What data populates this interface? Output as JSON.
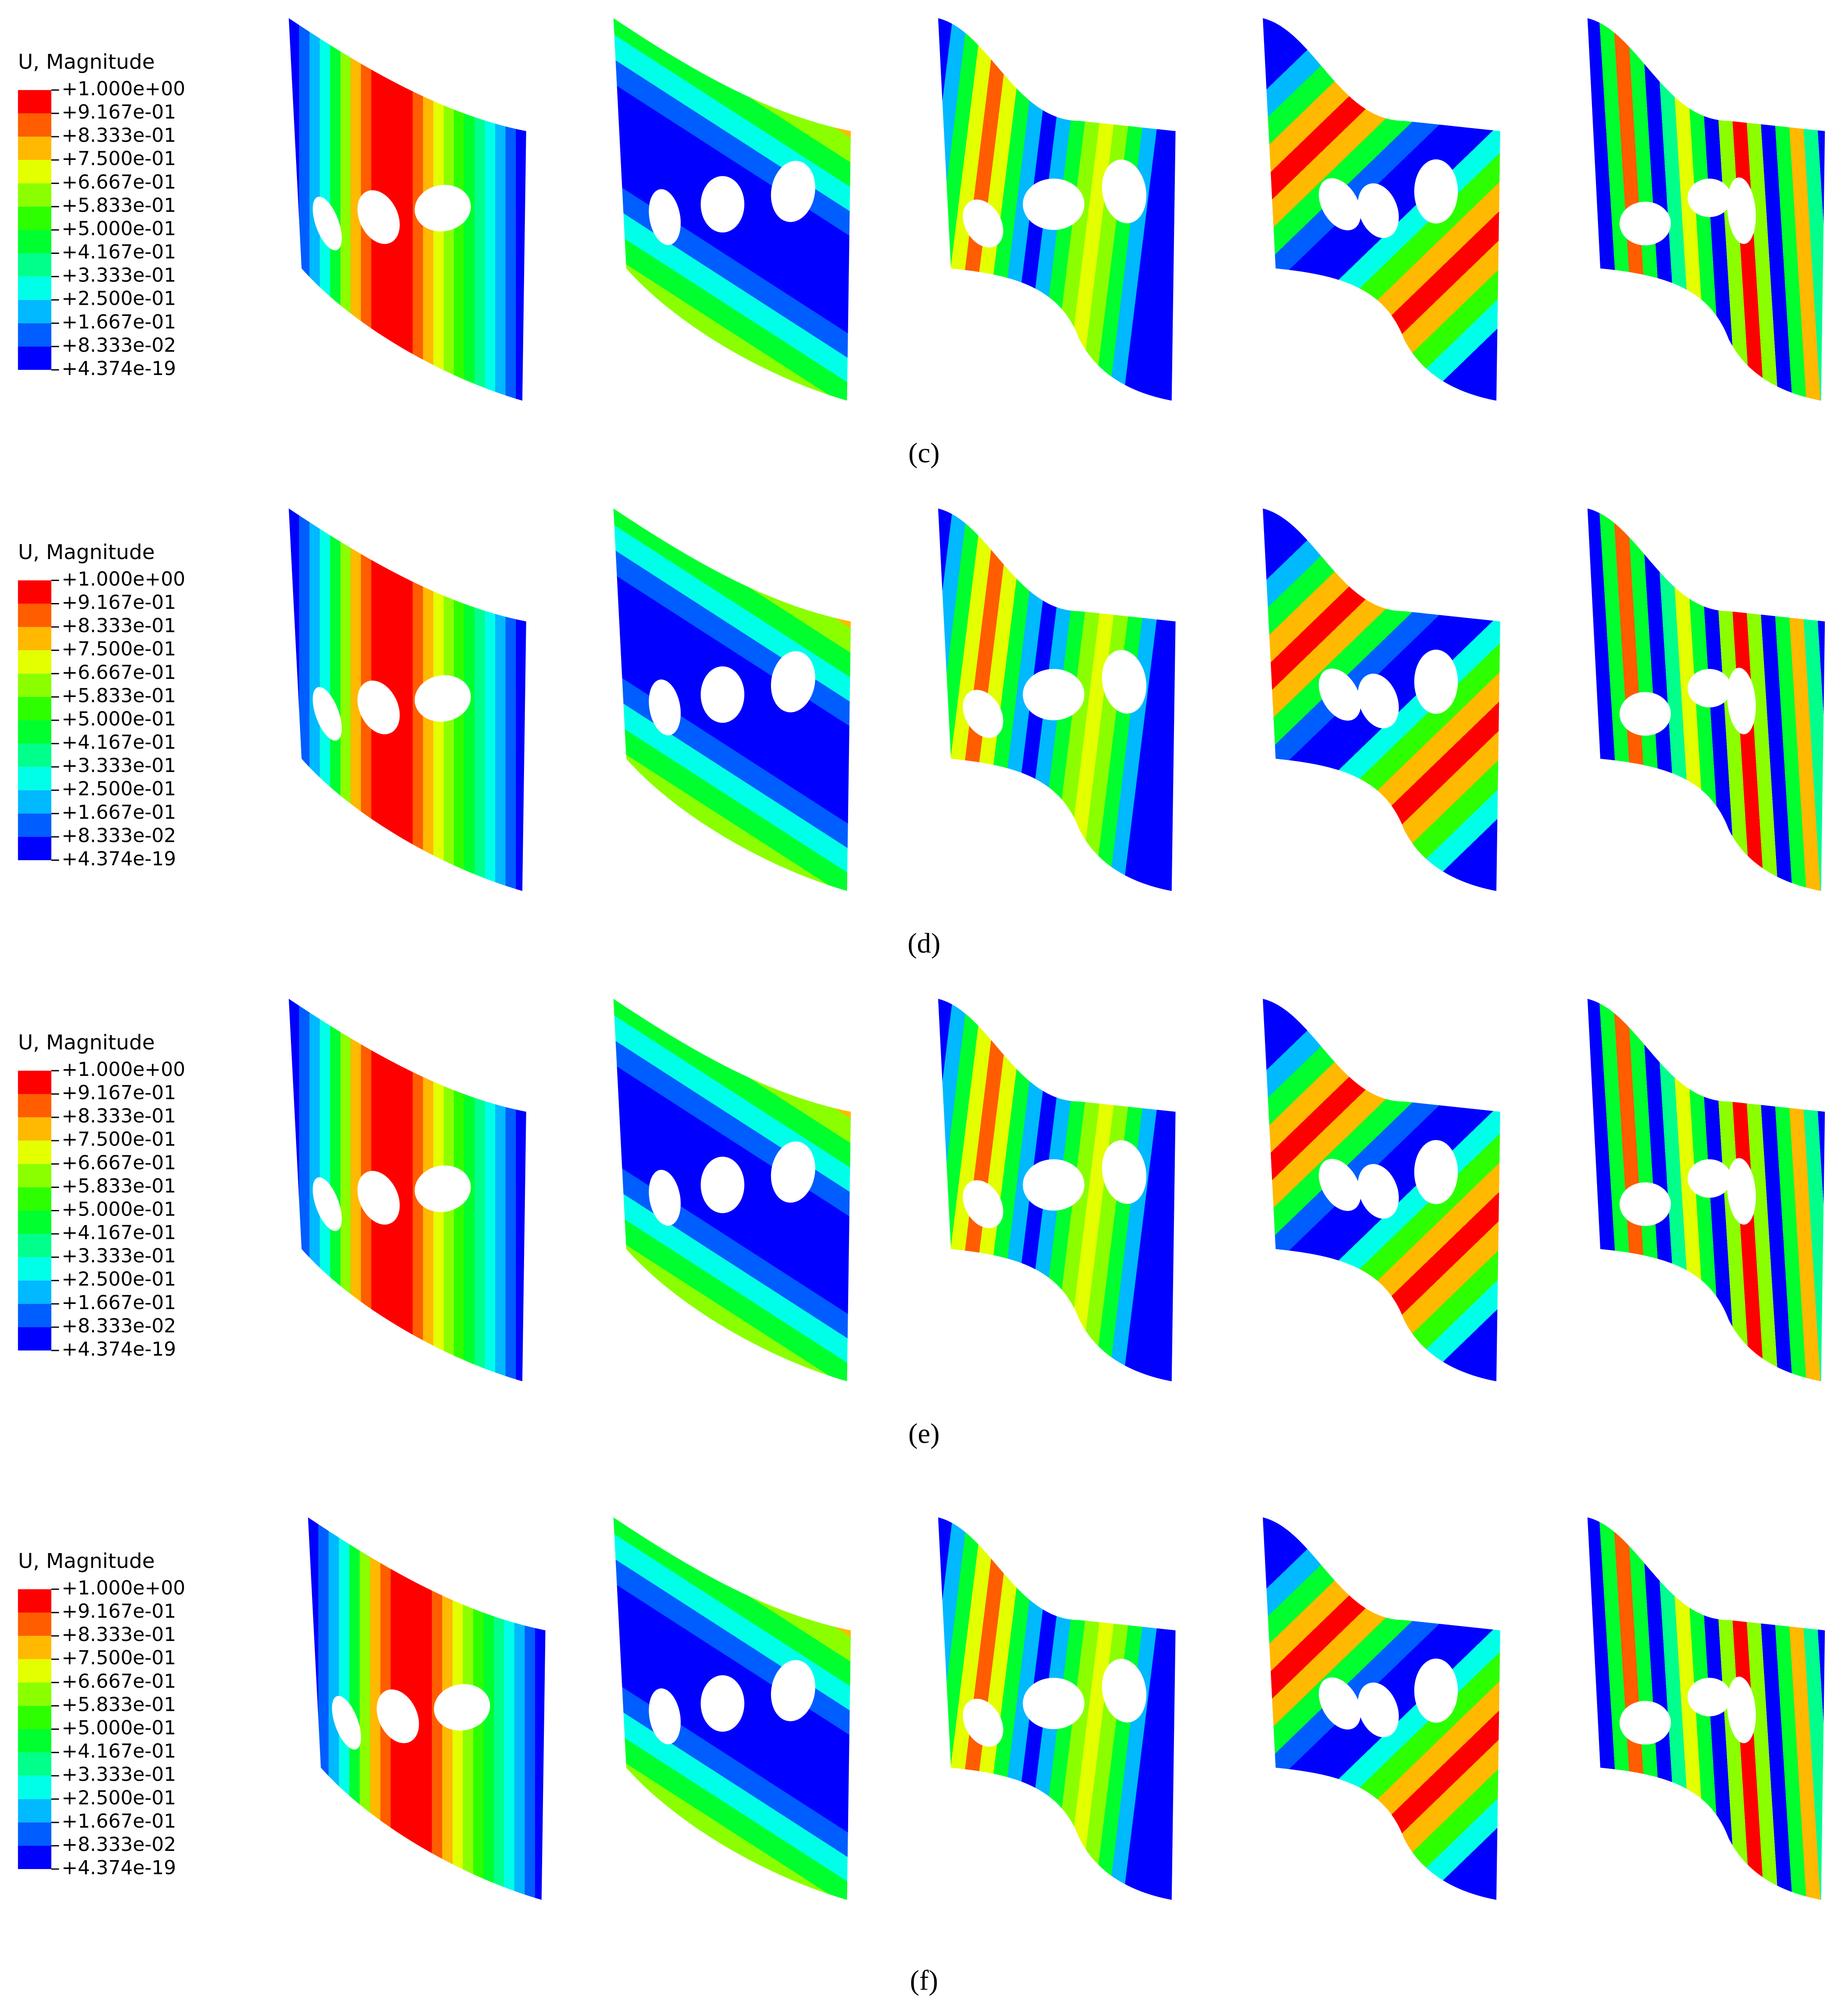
{
  "panels": [
    {
      "legend": {
        "title": "U, Magnitude",
        "levels": [
          "+1.000e+00",
          "+9.167e-01",
          "+8.333e-01",
          "+7.500e-01",
          "+6.667e-01",
          "+5.833e-01",
          "+5.000e-01",
          "+4.167e-01",
          "+3.333e-01",
          "+2.500e-01",
          "+1.667e-01",
          "+8.333e-02",
          "+4.374e-19"
        ],
        "colors": [
          "#ff0000",
          "#ff5d00",
          "#ffb900",
          "#e3ff00",
          "#8bff00",
          "#2eff00",
          "#00ff2e",
          "#00ff8b",
          "#00ffe8",
          "#00b9ff",
          "#005dff",
          "#0000ff"
        ]
      },
      "label": "(c)"
    },
    {
      "legend": {
        "title": "U, Magnitude",
        "levels": [
          "+1.000e+00",
          "+9.167e-01",
          "+8.333e-01",
          "+7.500e-01",
          "+6.667e-01",
          "+5.833e-01",
          "+5.000e-01",
          "+4.167e-01",
          "+3.333e-01",
          "+2.500e-01",
          "+1.667e-01",
          "+8.333e-02",
          "+4.374e-19"
        ],
        "colors": [
          "#ff0000",
          "#ff5d00",
          "#ffb900",
          "#e3ff00",
          "#8bff00",
          "#2eff00",
          "#00ff2e",
          "#00ff8b",
          "#00ffe8",
          "#00b9ff",
          "#005dff",
          "#0000ff"
        ]
      },
      "label": "(d)"
    },
    {
      "legend": {
        "title": "U, Magnitude",
        "levels": [
          "+1.000e+00",
          "+9.167e-01",
          "+8.333e-01",
          "+7.500e-01",
          "+6.667e-01",
          "+5.833e-01",
          "+5.000e-01",
          "+4.167e-01",
          "+3.333e-01",
          "+2.500e-01",
          "+1.667e-01",
          "+8.333e-02",
          "+4.374e-19"
        ],
        "colors": [
          "#ff0000",
          "#ff5d00",
          "#ffb900",
          "#e3ff00",
          "#8bff00",
          "#2eff00",
          "#00ff2e",
          "#00ff8b",
          "#00ffe8",
          "#00b9ff",
          "#005dff",
          "#0000ff"
        ]
      },
      "label": "(e)"
    },
    {
      "legend": {
        "title": "U, Magnitude",
        "levels": [
          "+1.000e+00",
          "+9.167e-01",
          "+8.333e-01",
          "+7.500e-01",
          "+6.667e-01",
          "+5.833e-01",
          "+5.000e-01",
          "+4.167e-01",
          "+3.333e-01",
          "+2.500e-01",
          "+1.667e-01",
          "+8.333e-02",
          "+4.374e-19"
        ],
        "colors": [
          "#ff0000",
          "#ff5d00",
          "#ffb900",
          "#e3ff00",
          "#8bff00",
          "#2eff00",
          "#00ff2e",
          "#00ff8b",
          "#00ffe8",
          "#00b9ff",
          "#005dff",
          "#0000ff"
        ]
      },
      "label": "(f)"
    }
  ]
}
